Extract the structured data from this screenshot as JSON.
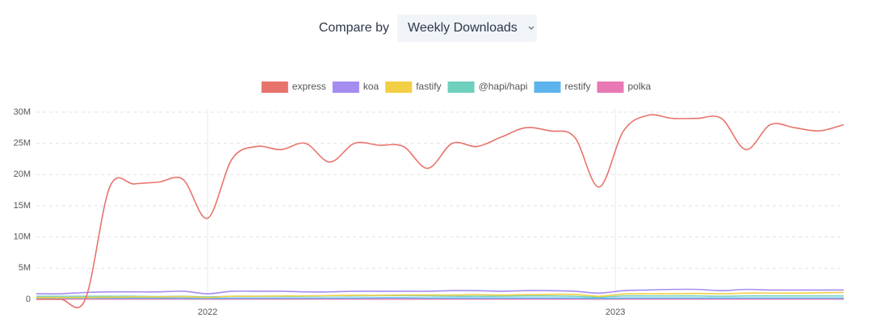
{
  "controls": {
    "label": "Compare by",
    "selected": "Weekly Downloads"
  },
  "chart_data": {
    "type": "line",
    "x": [
      2021.58,
      2021.64,
      2021.7,
      2021.76,
      2021.82,
      2021.88,
      2021.94,
      2022.0,
      2022.06,
      2022.12,
      2022.18,
      2022.24,
      2022.3,
      2022.36,
      2022.42,
      2022.48,
      2022.54,
      2022.6,
      2022.66,
      2022.72,
      2022.78,
      2022.84,
      2022.9,
      2022.96,
      2023.02,
      2023.08,
      2023.14,
      2023.2,
      2023.26,
      2023.32,
      2023.38,
      2023.44,
      2023.5,
      2023.56
    ],
    "xlim": [
      2021.58,
      2023.56
    ],
    "xticks": [
      2022,
      2023
    ],
    "ylim": [
      0,
      30000000
    ],
    "yticks": [
      0,
      {
        "value": 5000000,
        "label": "5M"
      },
      {
        "value": 10000000,
        "label": "10M"
      },
      {
        "value": 15000000,
        "label": "15M"
      },
      {
        "value": 20000000,
        "label": "20M"
      },
      {
        "value": 25000000,
        "label": "25M"
      },
      {
        "value": 30000000,
        "label": "30M"
      }
    ],
    "grid": true,
    "legend": "top",
    "series": [
      {
        "name": "express",
        "color": "#e8736c",
        "values": [
          0,
          0,
          0,
          18000000,
          18500000,
          18800000,
          19200000,
          13000000,
          22500000,
          24500000,
          24000000,
          25000000,
          22000000,
          25000000,
          24700000,
          24500000,
          21000000,
          25000000,
          24500000,
          26000000,
          27500000,
          27000000,
          26000000,
          18000000,
          27000000,
          29500000,
          29000000,
          29000000,
          29000000,
          24000000,
          28000000,
          27500000,
          27000000,
          28000000
        ]
      },
      {
        "name": "koa",
        "color": "#a48cf0",
        "values": [
          900000,
          900000,
          1100000,
          1200000,
          1200000,
          1200000,
          1300000,
          900000,
          1300000,
          1300000,
          1300000,
          1200000,
          1200000,
          1300000,
          1300000,
          1300000,
          1300000,
          1400000,
          1400000,
          1300000,
          1400000,
          1400000,
          1300000,
          1000000,
          1400000,
          1500000,
          1600000,
          1600000,
          1400000,
          1600000,
          1500000,
          1500000,
          1500000,
          1500000
        ]
      },
      {
        "name": "fastify",
        "color": "#f2cf45",
        "values": [
          300000,
          300000,
          300000,
          350000,
          400000,
          400000,
          450000,
          300000,
          500000,
          500000,
          550000,
          550000,
          600000,
          650000,
          650000,
          700000,
          700000,
          700000,
          750000,
          700000,
          750000,
          800000,
          800000,
          500000,
          850000,
          900000,
          900000,
          950000,
          900000,
          1000000,
          1000000,
          1000000,
          1050000,
          1100000
        ]
      },
      {
        "name": "@hapi/hapi",
        "color": "#6fd0be",
        "values": [
          500000,
          500000,
          500000,
          500000,
          500000,
          450000,
          500000,
          400000,
          500000,
          500000,
          500000,
          500000,
          550000,
          550000,
          600000,
          600000,
          550000,
          500000,
          500000,
          500000,
          550000,
          550000,
          500000,
          350000,
          550000,
          550000,
          550000,
          550000,
          500000,
          550000,
          550000,
          550000,
          550000,
          550000
        ]
      },
      {
        "name": "restify",
        "color": "#5db4ec",
        "values": [
          200000,
          200000,
          200000,
          200000,
          200000,
          200000,
          200000,
          150000,
          200000,
          200000,
          200000,
          200000,
          200000,
          200000,
          250000,
          250000,
          200000,
          200000,
          200000,
          200000,
          200000,
          200000,
          200000,
          150000,
          200000,
          200000,
          200000,
          200000,
          200000,
          200000,
          200000,
          200000,
          200000,
          200000
        ]
      },
      {
        "name": "polka",
        "color": "#e879b5",
        "values": [
          50000,
          50000,
          50000,
          50000,
          50000,
          50000,
          50000,
          40000,
          50000,
          50000,
          50000,
          50000,
          50000,
          50000,
          50000,
          50000,
          50000,
          50000,
          50000,
          50000,
          50000,
          50000,
          50000,
          40000,
          50000,
          50000,
          50000,
          50000,
          50000,
          50000,
          50000,
          50000,
          50000,
          50000
        ]
      }
    ]
  }
}
